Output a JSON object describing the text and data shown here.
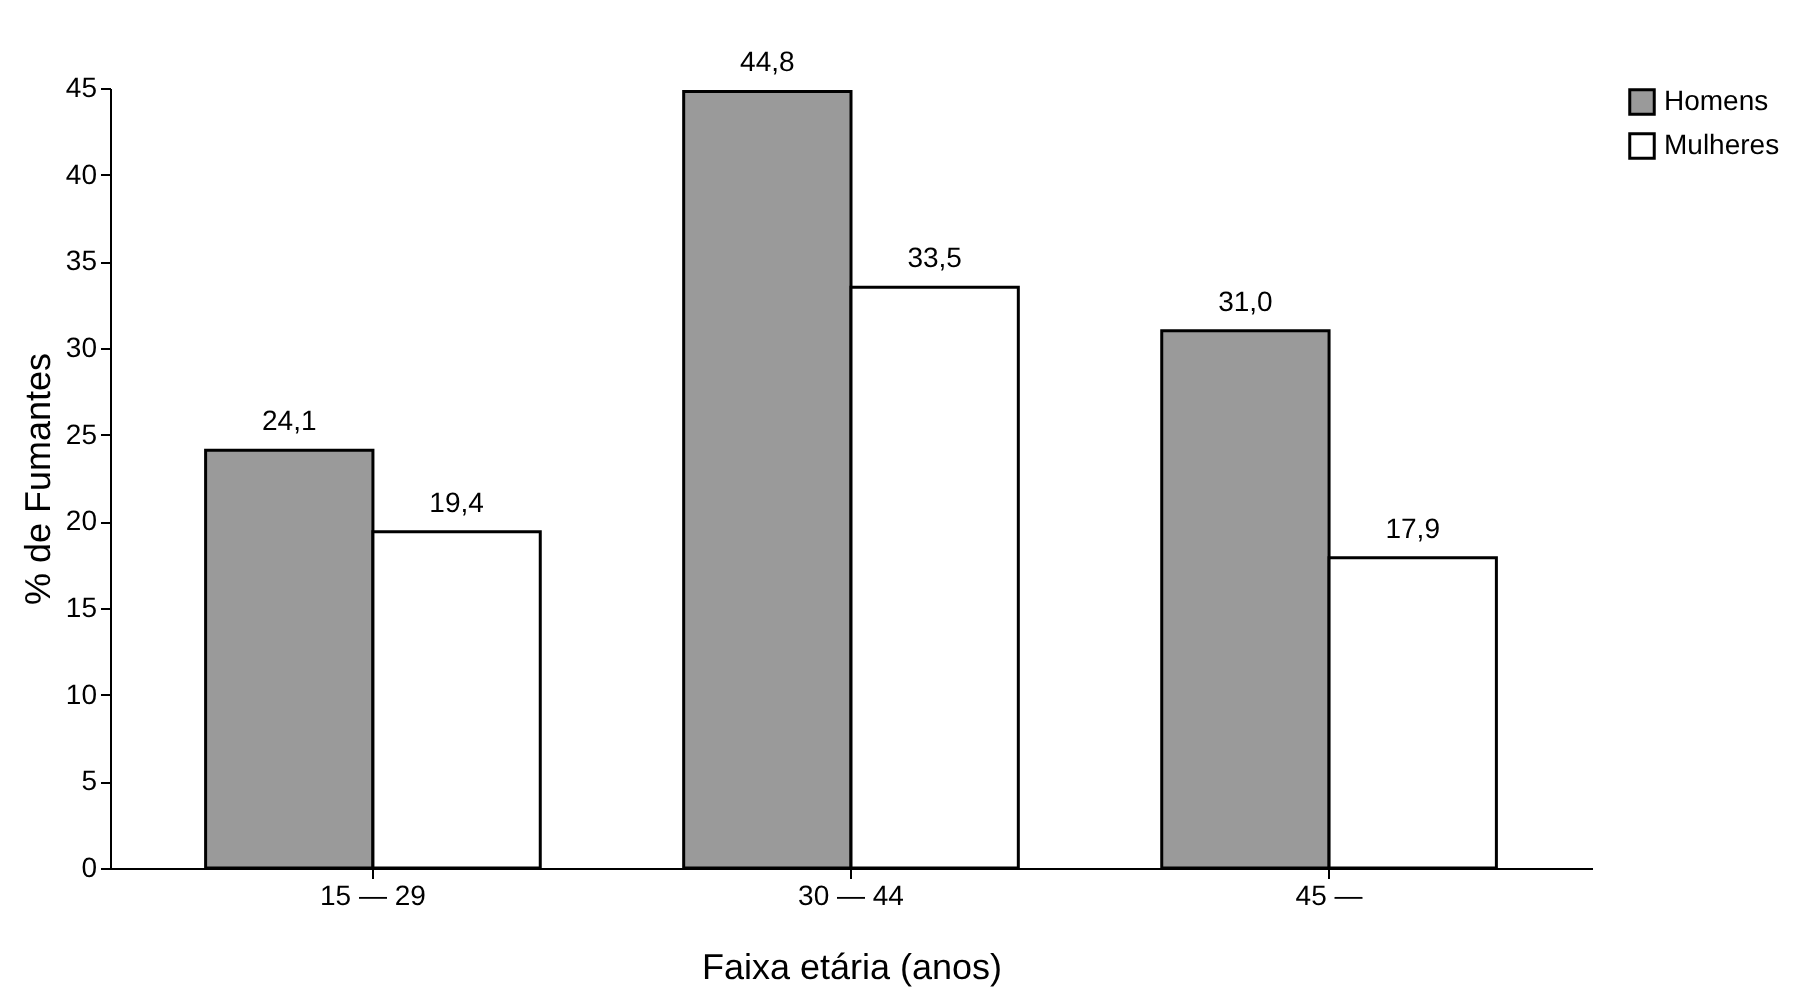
{
  "chart_data": {
    "type": "bar",
    "xlabel": "Faixa etária (anos)",
    "ylabel": "% de Fumantes",
    "categories": [
      "15 — 29",
      "30 — 44",
      "45 —"
    ],
    "series": [
      {
        "name": "Homens",
        "color": "#9a9a9a",
        "values": [
          24.1,
          44.8,
          31.0
        ],
        "value_labels": [
          "24,1",
          "44,8",
          "31,0"
        ]
      },
      {
        "name": "Mulheres",
        "color": "#ffffff",
        "values": [
          19.4,
          33.5,
          17.9
        ],
        "value_labels": [
          "19,4",
          "33,5",
          "17,9"
        ]
      }
    ],
    "ylim": [
      0,
      45
    ],
    "yticks": [
      0,
      5,
      10,
      15,
      20,
      25,
      30,
      35,
      40,
      45
    ],
    "grid": false,
    "legend": "right"
  }
}
